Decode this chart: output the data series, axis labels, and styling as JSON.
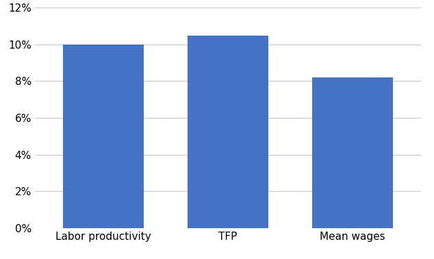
{
  "categories": [
    "Labor productivity",
    "TFP",
    "Mean wages"
  ],
  "values": [
    0.1,
    0.105,
    0.082
  ],
  "bar_color": "#4472C4",
  "ylim": [
    0,
    0.12
  ],
  "yticks": [
    0.0,
    0.02,
    0.04,
    0.06,
    0.08,
    0.1,
    0.12
  ],
  "background_color": "#ffffff",
  "grid_color": "#c8c8c8",
  "bar_width": 0.65,
  "xlim_left": -0.55,
  "xlim_right": 2.55
}
